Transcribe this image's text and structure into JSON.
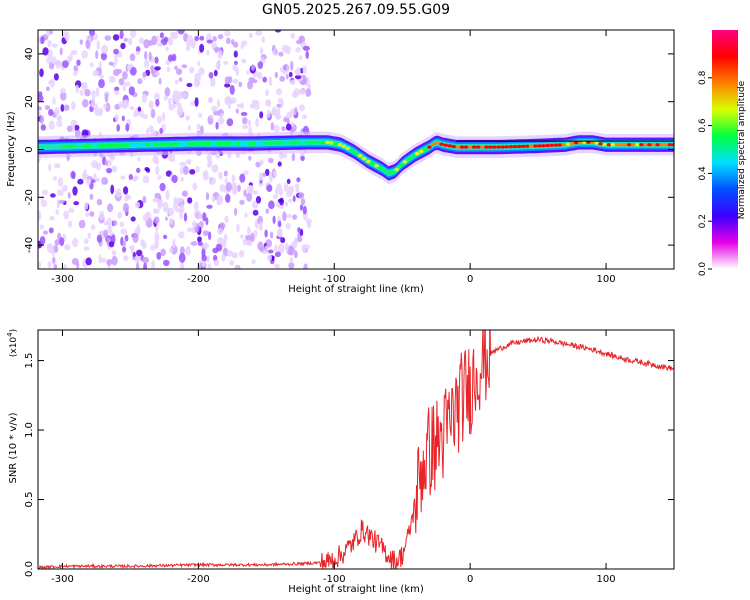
{
  "title": "GN05.2025.267.09.55.G09",
  "chart_data": [
    {
      "type": "heatmap",
      "name": "spectrogram",
      "xlabel": "Height of straight line (km)",
      "ylabel": "Frequency (Hz)",
      "xlim": [
        -318,
        150
      ],
      "ylim": [
        -50,
        50
      ],
      "xticks": [
        "-300",
        "-200",
        "-100",
        "0",
        "100"
      ],
      "xtick_values": [
        -300,
        -200,
        -100,
        0,
        100
      ],
      "yticks": [
        "-40",
        "-20",
        "0",
        "20",
        "40"
      ],
      "ytick_values": [
        -40,
        -20,
        0,
        20,
        40
      ],
      "noise_region_x": [
        -318,
        -118
      ],
      "ridge": {
        "x": [
          -318,
          -280,
          -240,
          -200,
          -160,
          -120,
          -105,
          -95,
          -85,
          -75,
          -65,
          -60,
          -55,
          -50,
          -45,
          -40,
          -30,
          -25,
          -20,
          -10,
          0,
          20,
          50,
          70,
          80,
          90,
          100,
          120,
          150
        ],
        "y": [
          1,
          1.5,
          2,
          2.5,
          2.5,
          3,
          3,
          2,
          -1,
          -5,
          -8,
          -10,
          -9,
          -6,
          -4,
          -2,
          1,
          3,
          2,
          1,
          1,
          1,
          1.5,
          2,
          3,
          3,
          2,
          2,
          2
        ]
      },
      "colorbar": {
        "label": "Normalized spectral amplitude",
        "range": [
          0,
          1
        ],
        "ticks": [
          "0.0",
          "0.2",
          "0.4",
          "0.6",
          "0.8"
        ],
        "tick_values": [
          0,
          0.2,
          0.4,
          0.6,
          0.8
        ],
        "colors": [
          "#ffffff",
          "#e600e6",
          "#3a00ff",
          "#0050ff",
          "#00e0ff",
          "#00ff40",
          "#d8ff00",
          "#ff8000",
          "#ff0000",
          "#ff0080"
        ]
      }
    },
    {
      "type": "line",
      "name": "snr",
      "xlabel": "Height of straight line (km)",
      "ylabel": "SNR (10 * v/v)",
      "multiplier_label": "(x10",
      "multiplier_exp": "4",
      "xlim": [
        -318,
        150
      ],
      "ylim": [
        0,
        1.72
      ],
      "xticks": [
        "-300",
        "-200",
        "-100",
        "0",
        "100"
      ],
      "xtick_values": [
        -300,
        -200,
        -100,
        0,
        100
      ],
      "yticks": [
        "0.0",
        "0.5",
        "1.0",
        "1.5"
      ],
      "ytick_values": [
        0,
        0.5,
        1.0,
        1.5
      ],
      "color": "#e8252a",
      "series": [
        {
          "name": "SNR",
          "x": [
            -318,
            -300,
            -250,
            -200,
            -150,
            -120,
            -105,
            -95,
            -85,
            -80,
            -75,
            -70,
            -65,
            -60,
            -55,
            -50,
            -45,
            -40,
            -35,
            -30,
            -25,
            -20,
            -15,
            -10,
            -5,
            0,
            5,
            10,
            15,
            20,
            25,
            30,
            40,
            50,
            60,
            70,
            80,
            90,
            100,
            110,
            120,
            130,
            140,
            150
          ],
          "y": [
            0.01,
            0.02,
            0.02,
            0.03,
            0.03,
            0.04,
            0.05,
            0.1,
            0.2,
            0.28,
            0.25,
            0.2,
            0.15,
            0.1,
            0.05,
            0.1,
            0.25,
            0.5,
            0.75,
            0.85,
            0.9,
            0.95,
            1.05,
            1.15,
            1.25,
            1.3,
            1.45,
            1.52,
            1.55,
            1.58,
            1.6,
            1.62,
            1.64,
            1.65,
            1.64,
            1.62,
            1.6,
            1.58,
            1.55,
            1.52,
            1.5,
            1.48,
            1.46,
            1.44
          ]
        }
      ]
    }
  ]
}
